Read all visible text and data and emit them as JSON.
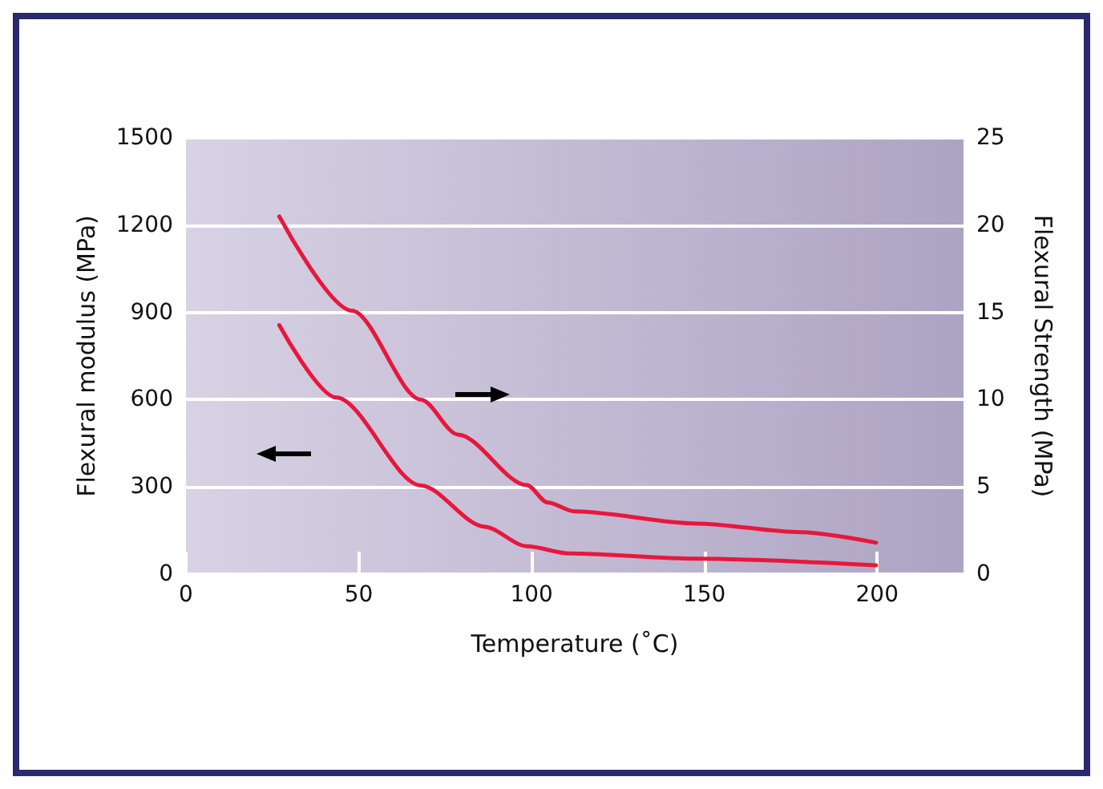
{
  "chart_data": {
    "type": "line",
    "xlabel": "Temperature (˚C)",
    "ylabel": "Flexural modulus (MPa)",
    "y2label": "Flexural Strength (MPa)",
    "xlim": [
      0,
      225
    ],
    "xticks": [
      0,
      50,
      100,
      150,
      200
    ],
    "ylim": [
      0,
      1500
    ],
    "yticks": [
      0,
      300,
      600,
      900,
      1200,
      1500
    ],
    "y2lim": [
      0,
      25
    ],
    "y2ticks": [
      0,
      5,
      10,
      15,
      20,
      25
    ],
    "grid": "y",
    "marker": "none",
    "line_style": "solid",
    "series": [
      {
        "color": "#e8173c",
        "axis": "y2",
        "x": [
          27,
          48,
          68,
          78.7,
          98.6,
          104.7,
          112.4,
          147.6,
          178,
          199.7
        ],
        "values": [
          20.5,
          15.1,
          10.0,
          8.0,
          5.1,
          4.1,
          3.6,
          2.9,
          2.4,
          1.8
        ]
      },
      {
        "color": "#e8173c",
        "axis": "y",
        "x": [
          27,
          43.5,
          68,
          86.4,
          98.6,
          111,
          147.6,
          199.7
        ],
        "values": [
          856,
          607,
          305,
          163,
          96,
          71,
          53,
          30
        ]
      }
    ]
  }
}
